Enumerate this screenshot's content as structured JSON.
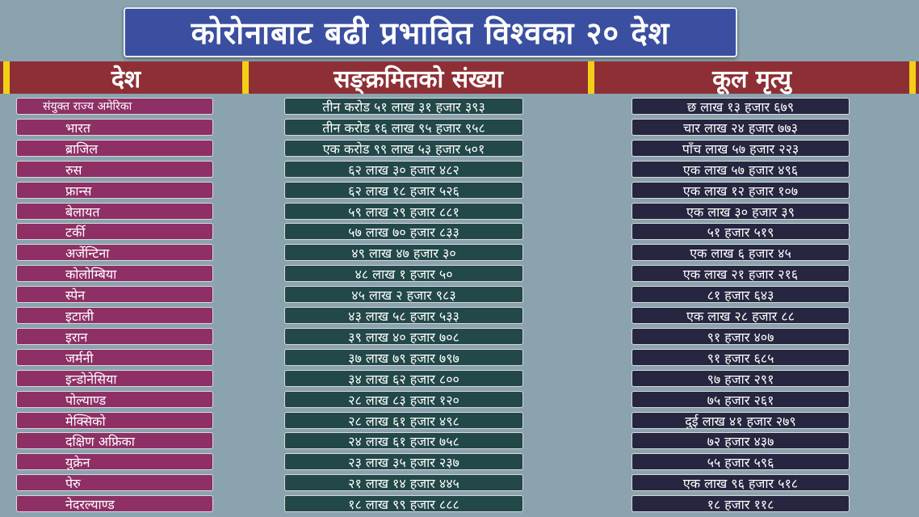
{
  "title": "कोरोनाबाट बढी प्रभावित विश्वका २० देश",
  "headers": {
    "country": "देश",
    "cases": "सङ्क्रमितको संख्या",
    "deaths": "कूल मृत्यु"
  },
  "colors": {
    "background": "#8aa3ae",
    "title_bg": "#3a4fa0",
    "header_band": "#8e2f35",
    "separator": "#f3d017",
    "country_cell": "#8e2f66",
    "cases_cell": "#234849",
    "deaths_cell": "#262640"
  },
  "rows": [
    {
      "country": "संयुक्त राज्य अमेरिका",
      "cases": "तीन करोड ५१ लाख ३१ हजार ३९३",
      "deaths": "छ लाख १३ हजार ६७९"
    },
    {
      "country": "भारत",
      "cases": "तीन करोड १६ लाख ९५ हजार ९५८",
      "deaths": "चार लाख २४ हजार ७७३"
    },
    {
      "country": "ब्राजिल",
      "cases": "एक करोड ९९ लाख ५३ हजार ५०१",
      "deaths": "पाँच लाख ५७ हजार २२३"
    },
    {
      "country": "रुस",
      "cases": "६२ लाख ३० हजार ४८२",
      "deaths": "एक लाख ५७ हजार ४९६"
    },
    {
      "country": "फ्रान्स",
      "cases": "६२ लाख १८ हजार ५२६",
      "deaths": "एक लाख १२ हजार १०७"
    },
    {
      "country": "बेलायत",
      "cases": "५९ लाख २९ हजार ८८१",
      "deaths": "एक लाख ३० हजार ३९"
    },
    {
      "country": "टर्की",
      "cases": "५७ लाख ७० हजार ८३३",
      "deaths": "५१ हजार ५१९"
    },
    {
      "country": "अर्जेन्टिना",
      "cases": "४९ लाख ४७ हजार ३०",
      "deaths": "एक लाख ६ हजार ४५"
    },
    {
      "country": "कोलोम्बिया",
      "cases": "४८ लाख १ हजार ५०",
      "deaths": "एक लाख २१ हजार २१६"
    },
    {
      "country": "स्पेन",
      "cases": "४५ लाख २ हजार ९८३",
      "deaths": "८१ हजार ६४३"
    },
    {
      "country": "इटाली",
      "cases": "४३ लाख ५८ हजार ५३३",
      "deaths": "एक लाख २८ हजार ८८"
    },
    {
      "country": "इरान",
      "cases": "३९ लाख ४० हजार ७०८",
      "deaths": "९१ हजार ४०७"
    },
    {
      "country": "जर्मनी",
      "cases": "३७ लाख ७९ हजार ७९७",
      "deaths": "९१ हजार ६८५"
    },
    {
      "country": "इन्डोनेसिया",
      "cases": "३४ लाख ६२ हजार ८००",
      "deaths": "९७ हजार २९१"
    },
    {
      "country": "पोल्याण्ड",
      "cases": "२८ लाख ८३ हजार १२०",
      "deaths": "७५ हजार २६१"
    },
    {
      "country": "मेक्सिको",
      "cases": "२८ लाख ६१ हजार ४९८",
      "deaths": "दुई लाख ४१ हजार २७९"
    },
    {
      "country": "दक्षिण अफ्रिका",
      "cases": "२४ लाख ६१ हजार ७५८",
      "deaths": "७२ हजार ४३७"
    },
    {
      "country": "युक्रेन",
      "cases": "२३ लाख ३५ हजार २३७",
      "deaths": "५५ हजार ५९६"
    },
    {
      "country": "पेरु",
      "cases": "२१ लाख १४ हजार ४४५",
      "deaths": "एक लाख ९६ हजार ५१८"
    },
    {
      "country": "नेदरल्याण्ड",
      "cases": "१८ लाख ९९ हजार ८८८",
      "deaths": "१८ हजार ११८"
    }
  ]
}
